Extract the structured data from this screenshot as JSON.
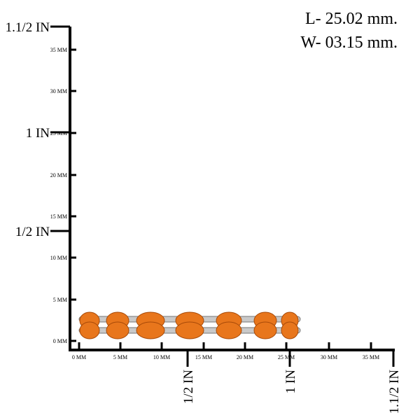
{
  "dimensions": [
    "L- 25.02 mm.",
    "W- 03.15 mm."
  ],
  "vertical_ruler": {
    "mm_labels": [
      "0 MM",
      "5 MM",
      "10 MM",
      "15 MM",
      "20 MM",
      "25 MM",
      "30 MM",
      "35 MM"
    ],
    "inch_labels": [
      "1/2 IN",
      "1 IN",
      "1.1/2 IN"
    ]
  },
  "horizontal_ruler": {
    "mm_labels": [
      "0 MM",
      "5 MM",
      "10 MM",
      "15 MM",
      "20 MM",
      "25 MM",
      "30 MM",
      "35 MM"
    ],
    "inch_labels": [
      "1/2 IN",
      "1 IN",
      "1.1/2 IN"
    ]
  }
}
